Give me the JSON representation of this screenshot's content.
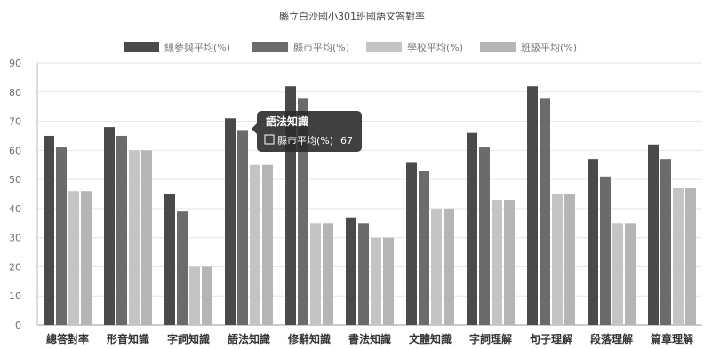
{
  "chart_data": {
    "type": "bar",
    "title": "縣立白沙國小301班國語文答對率",
    "categories": [
      "總答對率",
      "形音知識",
      "字詞知識",
      "語法知識",
      "修辭知識",
      "書法知識",
      "文體知識",
      "字詞理解",
      "句子理解",
      "段落理解",
      "篇章理解"
    ],
    "series": [
      {
        "name": "總參與平均(%)",
        "color": "#4a4a4a",
        "values": [
          65,
          68,
          45,
          71,
          82,
          37,
          56,
          66,
          82,
          57,
          62
        ]
      },
      {
        "name": "縣市平均(%)",
        "color": "#6b6b6b",
        "values": [
          61,
          65,
          39,
          67,
          78,
          35,
          53,
          61,
          78,
          51,
          57
        ]
      },
      {
        "name": "學校平均(%)",
        "color": "#c4c4c4",
        "values": [
          46,
          60,
          20,
          55,
          35,
          30,
          40,
          43,
          45,
          35,
          47
        ]
      },
      {
        "name": "班級平均(%)",
        "color": "#b5b5b5",
        "values": [
          46,
          60,
          20,
          55,
          35,
          30,
          40,
          43,
          45,
          35,
          47
        ]
      }
    ],
    "ylim": [
      0,
      90
    ],
    "yticks": [
      0,
      10,
      20,
      30,
      40,
      50,
      60,
      70,
      80,
      90
    ],
    "grid": true,
    "legend_position": "top",
    "tooltip": {
      "category": "語法知識",
      "series": "縣市平均(%)",
      "value": "67"
    }
  }
}
